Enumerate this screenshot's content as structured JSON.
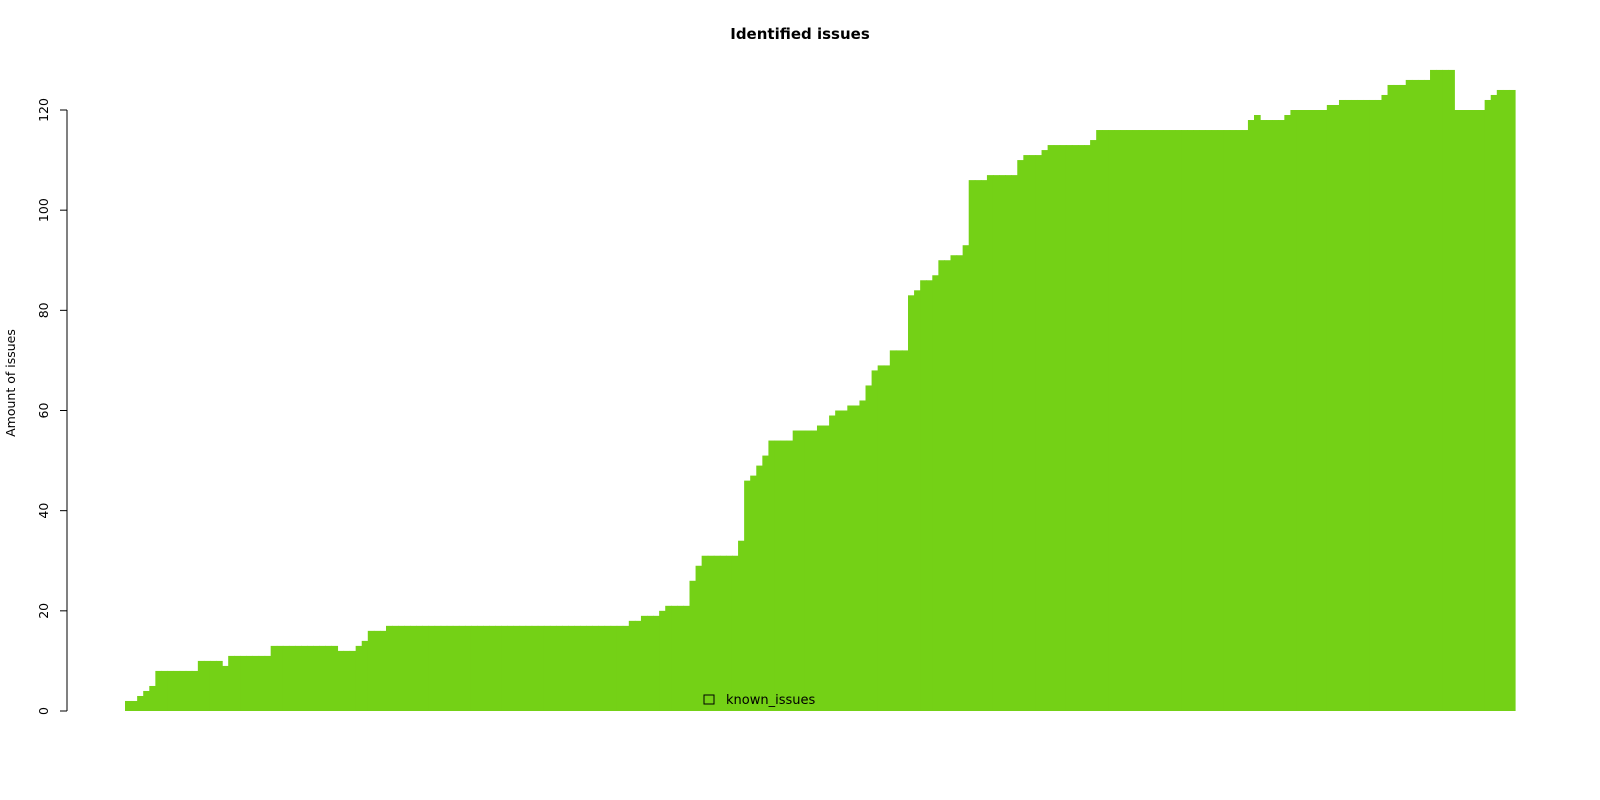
{
  "chart_data": {
    "type": "area",
    "title": "Identified issues",
    "xlabel": "",
    "ylabel": "Amount of issues",
    "ylim": [
      0,
      128
    ],
    "y_ticks": [
      0,
      20,
      40,
      60,
      80,
      100,
      120
    ],
    "grid": false,
    "legend_position": "bottom-center",
    "fill_color": "#74d116",
    "series": [
      {
        "name": "known_issues",
        "steps": 229,
        "values": [
          2,
          2,
          3,
          4,
          5,
          8,
          8,
          8,
          8,
          8,
          8,
          8,
          10,
          10,
          10,
          10,
          9,
          11,
          11,
          11,
          11,
          11,
          11,
          11,
          13,
          13,
          13,
          13,
          13,
          13,
          13,
          13,
          13,
          13,
          13,
          12,
          12,
          12,
          13,
          14,
          16,
          16,
          16,
          17,
          17,
          17,
          17,
          17,
          17,
          17,
          17,
          17,
          17,
          17,
          17,
          17,
          17,
          17,
          17,
          17,
          17,
          17,
          17,
          17,
          17,
          17,
          17,
          17,
          17,
          17,
          17,
          17,
          17,
          17,
          17,
          17,
          17,
          17,
          17,
          17,
          17,
          17,
          17,
          18,
          18,
          19,
          19,
          19,
          20,
          21,
          21,
          21,
          21,
          26,
          29,
          31,
          31,
          31,
          31,
          31,
          31,
          34,
          46,
          47,
          49,
          51,
          54,
          54,
          54,
          54,
          56,
          56,
          56,
          56,
          57,
          57,
          59,
          60,
          60,
          61,
          61,
          62,
          65,
          68,
          69,
          69,
          72,
          72,
          72,
          83,
          84,
          86,
          86,
          87,
          90,
          90,
          91,
          91,
          93,
          106,
          106,
          106,
          107,
          107,
          107,
          107,
          107,
          110,
          111,
          111,
          111,
          112,
          113,
          113,
          113,
          113,
          113,
          113,
          113,
          114,
          116,
          116,
          116,
          116,
          116,
          116,
          116,
          116,
          116,
          116,
          116,
          116,
          116,
          116,
          116,
          116,
          116,
          116,
          116,
          116,
          116,
          116,
          116,
          116,
          116,
          118,
          119,
          118,
          118,
          118,
          118,
          119,
          120,
          120,
          120,
          120,
          120,
          120,
          121,
          121,
          122,
          122,
          122,
          122,
          122,
          122,
          122,
          123,
          125,
          125,
          125,
          126,
          126,
          126,
          126,
          128,
          128,
          128,
          128,
          120,
          120,
          120,
          120,
          120,
          122,
          123,
          124,
          124,
          124
        ]
      }
    ]
  }
}
